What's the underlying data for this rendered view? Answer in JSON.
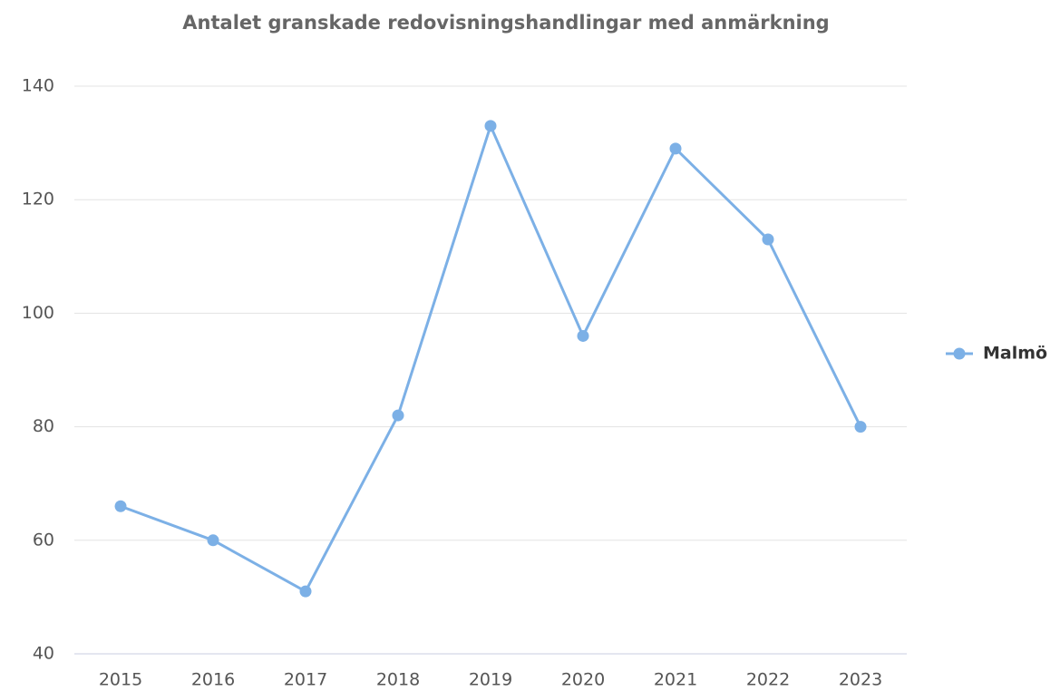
{
  "chart_data": {
    "type": "line",
    "title": "Antalet granskade redovisningshandlingar med anmärkning",
    "categories": [
      "2015",
      "2016",
      "2017",
      "2018",
      "2019",
      "2020",
      "2021",
      "2022",
      "2023"
    ],
    "series": [
      {
        "name": "Malmö",
        "color": "#7cb0e6",
        "values": [
          66,
          60,
          51,
          82,
          133,
          96,
          129,
          113,
          80
        ]
      }
    ],
    "ylim": [
      40,
      140
    ],
    "yticks": [
      40,
      60,
      80,
      100,
      120,
      140
    ],
    "grid": true,
    "legend": "right"
  }
}
